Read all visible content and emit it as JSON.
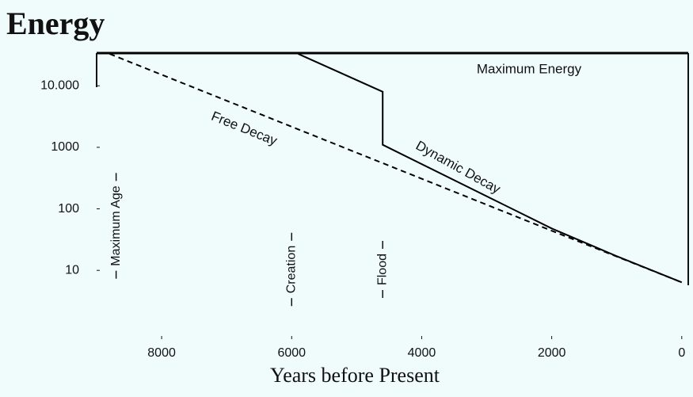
{
  "chart_data": {
    "type": "line",
    "title": "Energy",
    "xlabel": "Years before Present",
    "ylog": true,
    "xlim": [
      9000,
      -100
    ],
    "ylim": [
      1.3,
      34000
    ],
    "xticks": [
      8000,
      6000,
      4000,
      2000,
      0
    ],
    "yticks": [
      10,
      100,
      1000,
      {
        "value": 10000,
        "label": "10.000"
      }
    ],
    "series": [
      {
        "name": "Maximum Energy",
        "color": "#000000",
        "dash": false,
        "x": [
          9000,
          -100
        ],
        "values": [
          34000,
          34000
        ]
      },
      {
        "name": "Free Decay",
        "color": "#000000",
        "dash": true,
        "x": [
          8800,
          2000,
          0
        ],
        "values": [
          33000,
          44,
          6.4
        ]
      },
      {
        "name": "Dynamic Decay",
        "color": "#000000",
        "dash": false,
        "x": [
          5900,
          4600,
          4600,
          2000,
          1000,
          0
        ],
        "values": [
          33000,
          8000,
          1100,
          48,
          17,
          6.4
        ]
      }
    ],
    "annotations": [
      {
        "text": "Maximum Age",
        "x": 8700
      },
      {
        "text": "Creation",
        "x": 6000
      },
      {
        "text": "Flood",
        "x": 4600
      }
    ]
  }
}
